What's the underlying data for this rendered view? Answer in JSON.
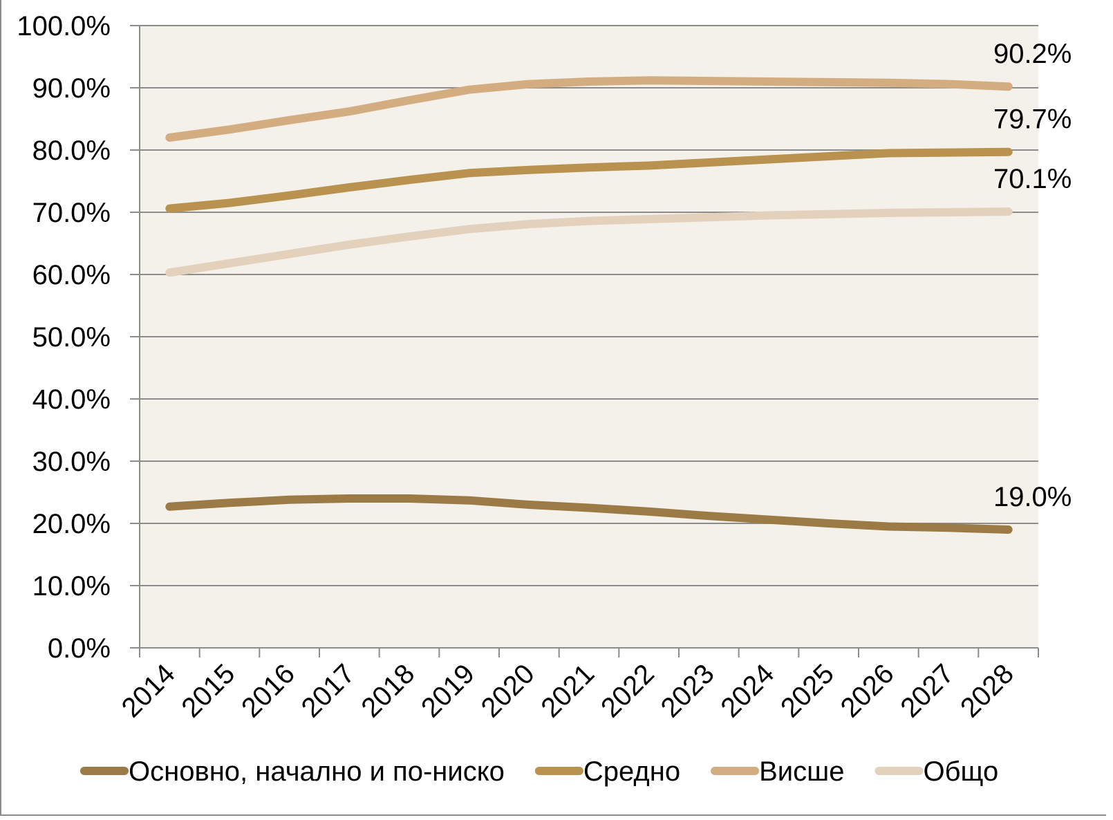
{
  "chart_data": {
    "type": "line",
    "categories": [
      "2014",
      "2015",
      "2016",
      "2017",
      "2018",
      "2019",
      "2020",
      "2021",
      "2022",
      "2023",
      "2024",
      "2025",
      "2026",
      "2027",
      "2028"
    ],
    "ylim": [
      0,
      100
    ],
    "y_ticks": [
      "0.0%",
      "10.0%",
      "20.0%",
      "30.0%",
      "40.0%",
      "50.0%",
      "60.0%",
      "70.0%",
      "80.0%",
      "90.0%",
      "100.0%"
    ],
    "grid": true,
    "legend_position": "bottom",
    "plot_background": "#f4f0ea",
    "series": [
      {
        "name": "Основно, начално и по-ниско",
        "color": "#9c7a45",
        "values": [
          22.7,
          23.3,
          23.8,
          24.0,
          24.0,
          23.7,
          23.0,
          22.5,
          21.9,
          21.2,
          20.6,
          20.0,
          19.5,
          19.3,
          19.0
        ],
        "end_label": "19.0%"
      },
      {
        "name": "Средно",
        "color": "#b8924e",
        "values": [
          70.6,
          71.5,
          72.7,
          74.0,
          75.2,
          76.3,
          76.8,
          77.2,
          77.5,
          78.0,
          78.5,
          79.0,
          79.5,
          79.6,
          79.7
        ],
        "end_label": "79.7%"
      },
      {
        "name": "Висше",
        "color": "#d3ad7f",
        "values": [
          82.0,
          83.3,
          84.8,
          86.2,
          88.0,
          89.7,
          90.6,
          91.0,
          91.2,
          91.1,
          91.0,
          90.9,
          90.8,
          90.6,
          90.2
        ],
        "end_label": "90.2%"
      },
      {
        "name": "Общо",
        "color": "#e3d1bb",
        "values": [
          60.3,
          61.8,
          63.3,
          64.8,
          66.1,
          67.3,
          68.1,
          68.6,
          68.9,
          69.2,
          69.5,
          69.7,
          69.9,
          70.0,
          70.1
        ],
        "end_label": "70.1%"
      }
    ]
  }
}
